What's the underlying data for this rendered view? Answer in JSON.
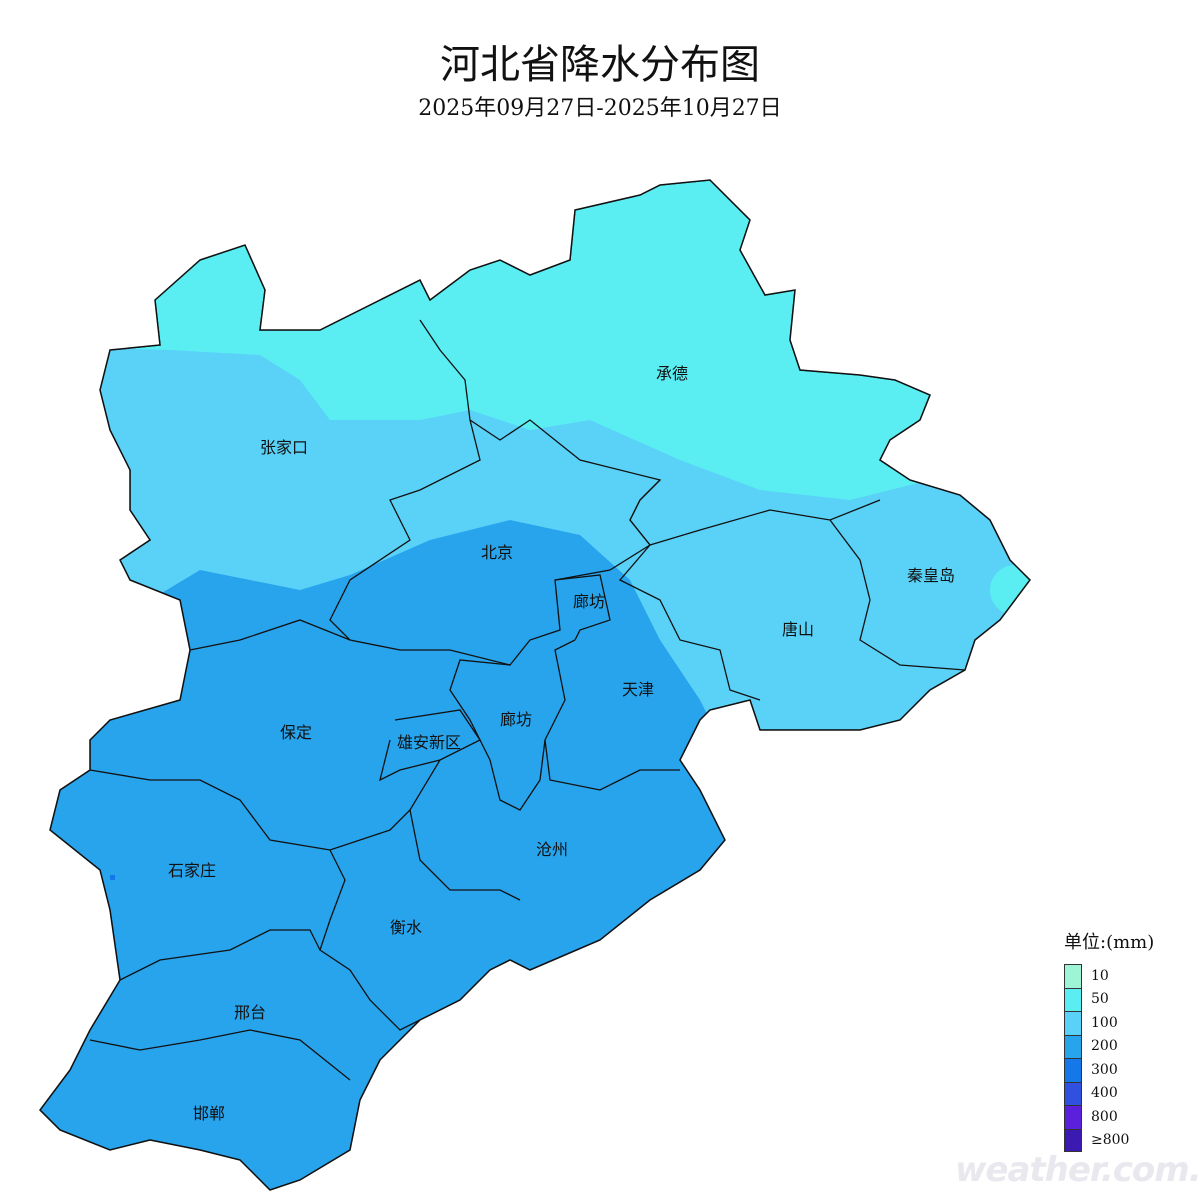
{
  "header": {
    "title": "河北省降水分布图",
    "subtitle": "2025年09月27日-2025年10月27日"
  },
  "map": {
    "regions": [
      "承德",
      "张家口",
      "北京",
      "廊坊",
      "秦皇岛",
      "唐山",
      "天津",
      "保定",
      "雄安新区",
      "廊坊",
      "沧州",
      "石家庄",
      "衡水",
      "邢台",
      "邯郸"
    ],
    "zone_colors": {
      "50": "#5aeef2",
      "100": "#5ad2f8",
      "200": "#28a4ec"
    }
  },
  "legend": {
    "title": "单位:(mm)",
    "items": [
      {
        "label": "10",
        "color": "#9ef5d6"
      },
      {
        "label": "50",
        "color": "#5aeef2"
      },
      {
        "label": "100",
        "color": "#5ad2f8"
      },
      {
        "label": "200",
        "color": "#28a4ec"
      },
      {
        "label": "300",
        "color": "#1478e8"
      },
      {
        "label": "400",
        "color": "#3050e0"
      },
      {
        "label": "800",
        "color": "#5a20dc"
      },
      {
        "label": "≥800",
        "color": "#3a1ab0"
      }
    ]
  },
  "watermark": "weather.com.cn"
}
